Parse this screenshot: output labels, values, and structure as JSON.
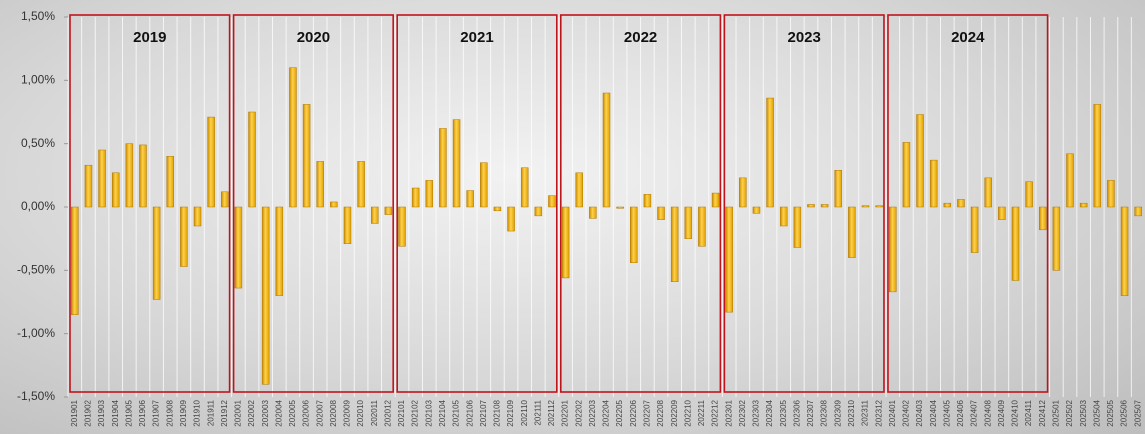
{
  "chart_data": {
    "type": "bar",
    "categories": [
      "201901",
      "201902",
      "201903",
      "201904",
      "201905",
      "201906",
      "201907",
      "201908",
      "201909",
      "201910",
      "201911",
      "201912",
      "202001",
      "202002",
      "202003",
      "202004",
      "202005",
      "202006",
      "202007",
      "202008",
      "202009",
      "202010",
      "202011",
      "202012",
      "202101",
      "202102",
      "202103",
      "202104",
      "202105",
      "202106",
      "202107",
      "202108",
      "202109",
      "202110",
      "202111",
      "202112",
      "202201",
      "202202",
      "202203",
      "202204",
      "202205",
      "202206",
      "202207",
      "202208",
      "202209",
      "202210",
      "202211",
      "202212",
      "202301",
      "202302",
      "202303",
      "202304",
      "202305",
      "202306",
      "202307",
      "202308",
      "202309",
      "202310",
      "202311",
      "202312",
      "202401",
      "202402",
      "202403",
      "202404",
      "202405",
      "202406",
      "202407",
      "202408",
      "202409",
      "202410",
      "202411",
      "202412",
      "202501",
      "202502",
      "202503",
      "202504",
      "202505",
      "202506",
      "202507"
    ],
    "values": [
      -0.85,
      0.33,
      0.45,
      0.27,
      0.5,
      0.49,
      -0.73,
      0.4,
      -0.47,
      -0.15,
      0.71,
      0.12,
      -0.64,
      0.75,
      -1.4,
      -0.7,
      1.1,
      0.81,
      0.36,
      0.04,
      -0.29,
      0.36,
      -0.13,
      -0.06,
      -0.31,
      0.15,
      0.21,
      0.62,
      0.69,
      0.13,
      0.35,
      -0.03,
      -0.19,
      0.31,
      -0.07,
      0.09,
      -0.56,
      0.27,
      -0.09,
      0.9,
      -0.01,
      -0.44,
      0.1,
      -0.1,
      -0.59,
      -0.25,
      -0.31,
      0.11,
      -0.83,
      0.23,
      -0.05,
      0.86,
      -0.15,
      -0.32,
      0.02,
      0.02,
      0.29,
      -0.4,
      0.01,
      0.01,
      -0.67,
      0.51,
      0.73,
      0.37,
      0.03,
      0.06,
      -0.36,
      0.23,
      -0.1,
      -0.58,
      0.2,
      -0.18,
      -0.5,
      0.42,
      0.03,
      0.81,
      0.21,
      -0.7,
      -0.07
    ],
    "color": "#f5b800",
    "ylim": [
      -1.5,
      1.5
    ],
    "yticks": [
      {
        "value": -1.5,
        "label": "-1,50%"
      },
      {
        "value": -1.0,
        "label": "-1,00%"
      },
      {
        "value": -0.5,
        "label": "-0,50%"
      },
      {
        "value": 0,
        "label": "0,00%"
      },
      {
        "value": 0.5,
        "label": "0,50%"
      },
      {
        "value": 1.0,
        "label": "1,00%"
      },
      {
        "value": 1.5,
        "label": "1,50%"
      }
    ],
    "year_boxes": [
      "2019",
      "2020",
      "2021",
      "2022",
      "2023",
      "2024"
    ],
    "box_color": "#c0141c",
    "grid": true
  }
}
